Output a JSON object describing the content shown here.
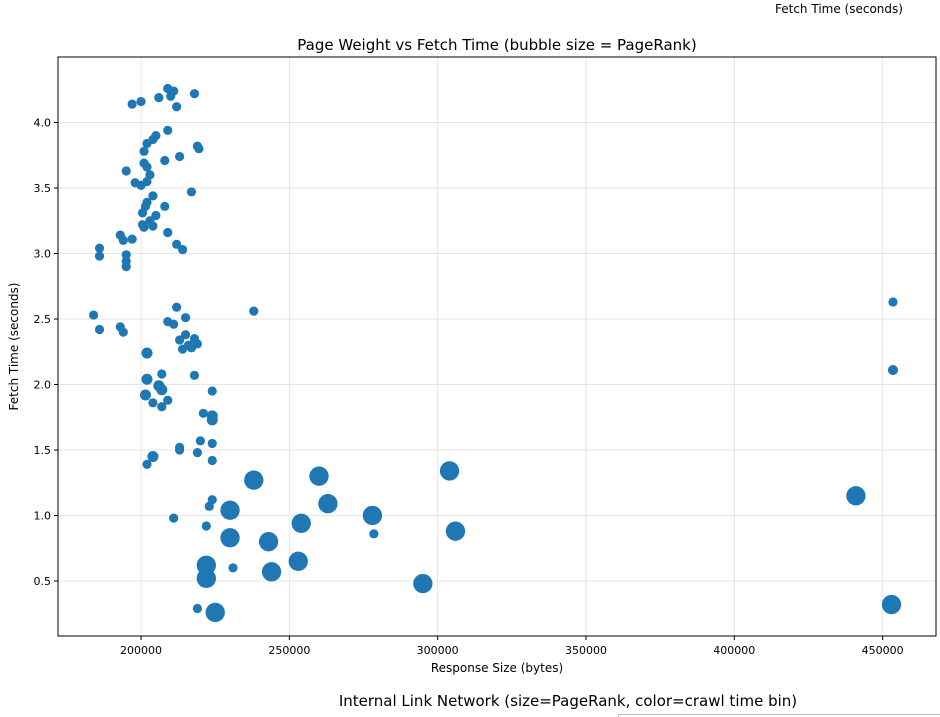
{
  "header": {
    "caption": "Fetch Time (seconds)"
  },
  "footer": {
    "caption": "Internal Link Network (size=PageRank, color=crawl time bin)"
  },
  "colors": {
    "marker": "#1f77b4",
    "grid": "#e6e6e6",
    "axis": "#000000"
  },
  "chart_data": {
    "type": "scatter",
    "title": "Page Weight vs Fetch Time (bubble size = PageRank)",
    "xlabel": "Response Size (bytes)",
    "ylabel": "Fetch Time (seconds)",
    "xlim": [
      172000,
      468000
    ],
    "ylim": [
      0.08,
      4.5
    ],
    "xticks": [
      200000,
      250000,
      300000,
      350000,
      400000,
      450000
    ],
    "yticks": [
      0.5,
      1.0,
      1.5,
      2.0,
      2.5,
      3.0,
      3.5,
      4.0
    ],
    "grid": true,
    "points": [
      {
        "x": 197000,
        "y": 4.14,
        "s": 1
      },
      {
        "x": 200000,
        "y": 4.16,
        "s": 1
      },
      {
        "x": 206000,
        "y": 4.19,
        "s": 1
      },
      {
        "x": 209000,
        "y": 4.26,
        "s": 1
      },
      {
        "x": 210000,
        "y": 4.2,
        "s": 1
      },
      {
        "x": 211000,
        "y": 4.24,
        "s": 1
      },
      {
        "x": 212000,
        "y": 4.12,
        "s": 1
      },
      {
        "x": 218000,
        "y": 4.22,
        "s": 1
      },
      {
        "x": 202000,
        "y": 3.84,
        "s": 1
      },
      {
        "x": 204000,
        "y": 3.87,
        "s": 1
      },
      {
        "x": 205000,
        "y": 3.9,
        "s": 1
      },
      {
        "x": 209000,
        "y": 3.94,
        "s": 1
      },
      {
        "x": 219000,
        "y": 3.82,
        "s": 1
      },
      {
        "x": 219500,
        "y": 3.8,
        "s": 1
      },
      {
        "x": 201000,
        "y": 3.78,
        "s": 1
      },
      {
        "x": 213000,
        "y": 3.74,
        "s": 1
      },
      {
        "x": 208000,
        "y": 3.71,
        "s": 1
      },
      {
        "x": 201000,
        "y": 3.69,
        "s": 1
      },
      {
        "x": 202000,
        "y": 3.66,
        "s": 1
      },
      {
        "x": 195000,
        "y": 3.63,
        "s": 1
      },
      {
        "x": 203000,
        "y": 3.6,
        "s": 1
      },
      {
        "x": 198000,
        "y": 3.54,
        "s": 1
      },
      {
        "x": 200000,
        "y": 3.52,
        "s": 1
      },
      {
        "x": 202000,
        "y": 3.55,
        "s": 1
      },
      {
        "x": 217000,
        "y": 3.47,
        "s": 1
      },
      {
        "x": 204000,
        "y": 3.44,
        "s": 1
      },
      {
        "x": 202000,
        "y": 3.39,
        "s": 1
      },
      {
        "x": 201500,
        "y": 3.36,
        "s": 1
      },
      {
        "x": 208000,
        "y": 3.36,
        "s": 1
      },
      {
        "x": 200500,
        "y": 3.31,
        "s": 1
      },
      {
        "x": 205000,
        "y": 3.29,
        "s": 1
      },
      {
        "x": 203000,
        "y": 3.25,
        "s": 1
      },
      {
        "x": 200500,
        "y": 3.22,
        "s": 1
      },
      {
        "x": 201000,
        "y": 3.2,
        "s": 1
      },
      {
        "x": 204000,
        "y": 3.21,
        "s": 1
      },
      {
        "x": 209000,
        "y": 3.16,
        "s": 1
      },
      {
        "x": 193000,
        "y": 3.14,
        "s": 1
      },
      {
        "x": 194000,
        "y": 3.1,
        "s": 1
      },
      {
        "x": 197000,
        "y": 3.11,
        "s": 1
      },
      {
        "x": 212000,
        "y": 3.07,
        "s": 1
      },
      {
        "x": 186000,
        "y": 3.04,
        "s": 1
      },
      {
        "x": 214000,
        "y": 3.03,
        "s": 1
      },
      {
        "x": 186000,
        "y": 2.98,
        "s": 1
      },
      {
        "x": 195000,
        "y": 2.99,
        "s": 1
      },
      {
        "x": 195000,
        "y": 2.94,
        "s": 1
      },
      {
        "x": 195000,
        "y": 2.9,
        "s": 1
      },
      {
        "x": 212000,
        "y": 2.59,
        "s": 1
      },
      {
        "x": 238000,
        "y": 2.56,
        "s": 1
      },
      {
        "x": 184000,
        "y": 2.53,
        "s": 1
      },
      {
        "x": 215000,
        "y": 2.51,
        "s": 1
      },
      {
        "x": 209000,
        "y": 2.48,
        "s": 1
      },
      {
        "x": 211000,
        "y": 2.46,
        "s": 1
      },
      {
        "x": 193000,
        "y": 2.44,
        "s": 1
      },
      {
        "x": 186000,
        "y": 2.42,
        "s": 1
      },
      {
        "x": 194000,
        "y": 2.4,
        "s": 1
      },
      {
        "x": 215000,
        "y": 2.38,
        "s": 1
      },
      {
        "x": 213000,
        "y": 2.34,
        "s": 1
      },
      {
        "x": 218000,
        "y": 2.35,
        "s": 1
      },
      {
        "x": 216000,
        "y": 2.3,
        "s": 1
      },
      {
        "x": 219000,
        "y": 2.31,
        "s": 1
      },
      {
        "x": 217000,
        "y": 2.28,
        "s": 1
      },
      {
        "x": 214000,
        "y": 2.27,
        "s": 1
      },
      {
        "x": 202000,
        "y": 2.24,
        "s": 1.2
      },
      {
        "x": 218000,
        "y": 2.07,
        "s": 1
      },
      {
        "x": 207000,
        "y": 2.08,
        "s": 1
      },
      {
        "x": 202000,
        "y": 2.04,
        "s": 1.2
      },
      {
        "x": 206000,
        "y": 1.99,
        "s": 1.2
      },
      {
        "x": 207000,
        "y": 1.96,
        "s": 1.2
      },
      {
        "x": 224000,
        "y": 1.95,
        "s": 1
      },
      {
        "x": 201500,
        "y": 1.92,
        "s": 1.2
      },
      {
        "x": 209000,
        "y": 1.88,
        "s": 1
      },
      {
        "x": 204000,
        "y": 1.86,
        "s": 1
      },
      {
        "x": 207000,
        "y": 1.83,
        "s": 1
      },
      {
        "x": 221000,
        "y": 1.78,
        "s": 1
      },
      {
        "x": 224000,
        "y": 1.76,
        "s": 1.2
      },
      {
        "x": 224000,
        "y": 1.73,
        "s": 1.2
      },
      {
        "x": 220000,
        "y": 1.57,
        "s": 1
      },
      {
        "x": 224000,
        "y": 1.55,
        "s": 1
      },
      {
        "x": 213000,
        "y": 1.52,
        "s": 1
      },
      {
        "x": 213000,
        "y": 1.5,
        "s": 1
      },
      {
        "x": 219000,
        "y": 1.48,
        "s": 1
      },
      {
        "x": 204000,
        "y": 1.45,
        "s": 1.2
      },
      {
        "x": 224000,
        "y": 1.42,
        "s": 1
      },
      {
        "x": 202000,
        "y": 1.39,
        "s": 1
      },
      {
        "x": 260000,
        "y": 1.3,
        "s": 2.1
      },
      {
        "x": 304000,
        "y": 1.34,
        "s": 2.1
      },
      {
        "x": 238000,
        "y": 1.27,
        "s": 2.1
      },
      {
        "x": 224000,
        "y": 1.12,
        "s": 1
      },
      {
        "x": 263000,
        "y": 1.09,
        "s": 2.1
      },
      {
        "x": 223000,
        "y": 1.07,
        "s": 1
      },
      {
        "x": 230000,
        "y": 1.04,
        "s": 2.1
      },
      {
        "x": 278000,
        "y": 1.0,
        "s": 2.1
      },
      {
        "x": 211000,
        "y": 0.98,
        "s": 1
      },
      {
        "x": 254000,
        "y": 0.94,
        "s": 2.1
      },
      {
        "x": 222000,
        "y": 0.92,
        "s": 1
      },
      {
        "x": 306000,
        "y": 0.88,
        "s": 2.1
      },
      {
        "x": 278500,
        "y": 0.86,
        "s": 1
      },
      {
        "x": 230000,
        "y": 0.83,
        "s": 2.1
      },
      {
        "x": 243000,
        "y": 0.8,
        "s": 2.1
      },
      {
        "x": 253000,
        "y": 0.65,
        "s": 2.1
      },
      {
        "x": 222000,
        "y": 0.62,
        "s": 2.1
      },
      {
        "x": 231000,
        "y": 0.6,
        "s": 1
      },
      {
        "x": 244000,
        "y": 0.57,
        "s": 2.1
      },
      {
        "x": 222000,
        "y": 0.52,
        "s": 2.1
      },
      {
        "x": 295000,
        "y": 0.48,
        "s": 2.1
      },
      {
        "x": 219000,
        "y": 0.29,
        "s": 1
      },
      {
        "x": 225000,
        "y": 0.26,
        "s": 2.1
      },
      {
        "x": 453500,
        "y": 2.63,
        "s": 1
      },
      {
        "x": 453500,
        "y": 2.11,
        "s": 1.1
      },
      {
        "x": 441000,
        "y": 1.15,
        "s": 2.1
      },
      {
        "x": 453000,
        "y": 0.32,
        "s": 2.1
      }
    ]
  }
}
